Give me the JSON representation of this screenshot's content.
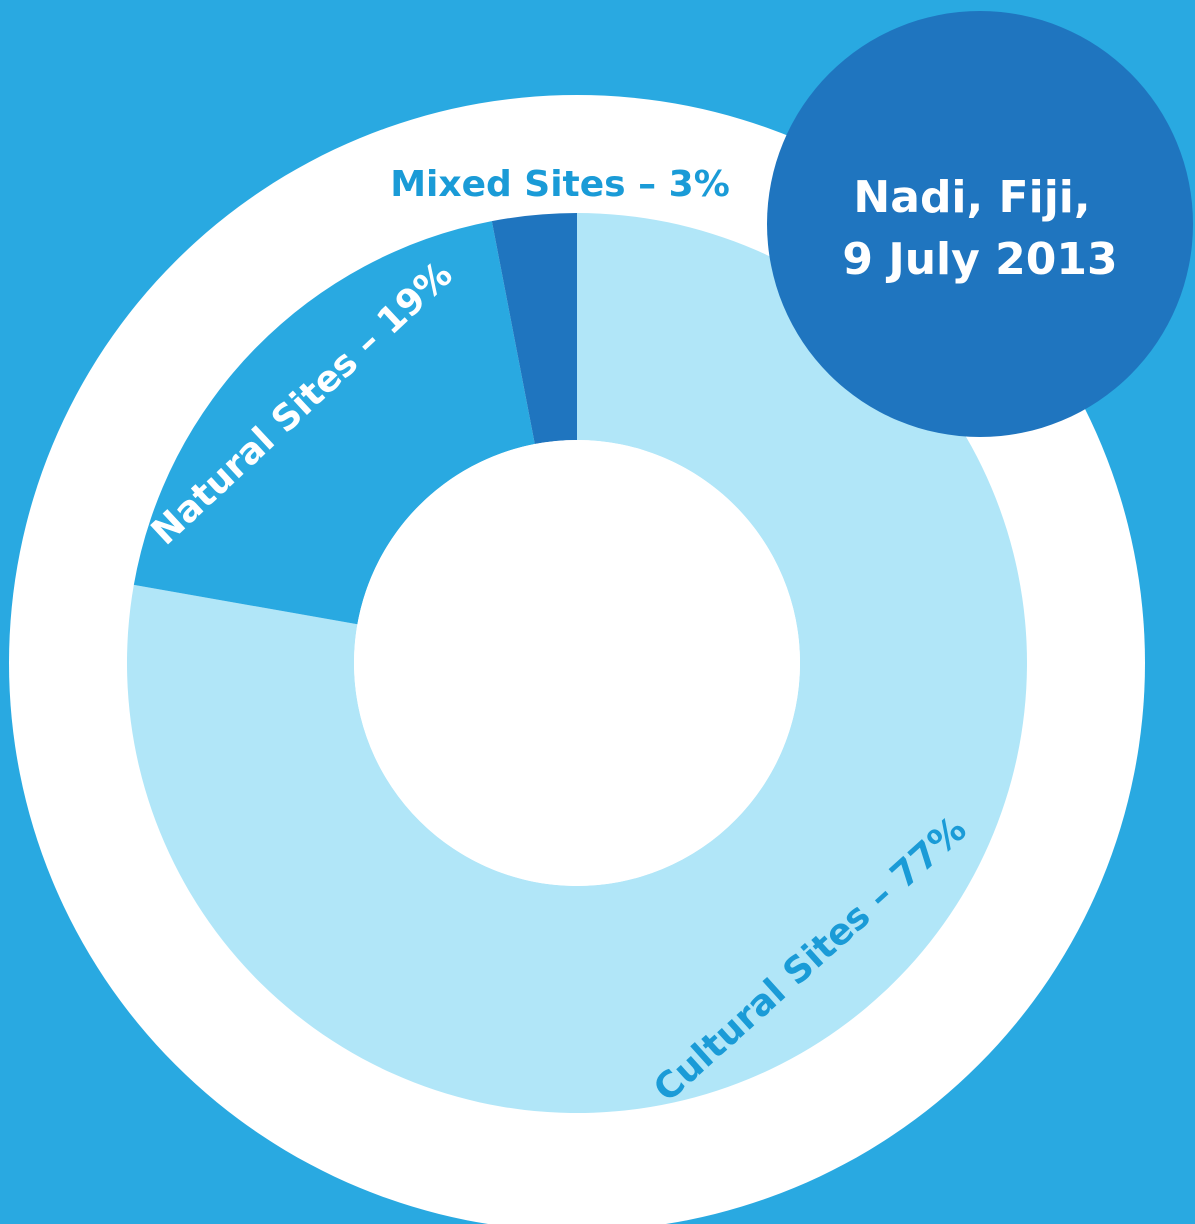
{
  "colors": {
    "background": "#29a9e1",
    "outer_ring": "#ffffff",
    "inner_hole": "#ffffff",
    "badge": "#1f75bf",
    "badge_text": "#ffffff"
  },
  "badge": {
    "line1": "Nadi, Fiji,",
    "line2": "9 July 2013"
  },
  "chart_data": {
    "type": "pie",
    "title": "",
    "start": "top",
    "direction": "clockwise",
    "slices": [
      {
        "label": "Cultural Sites – 77%",
        "value": 77,
        "color": "#b1e6f8",
        "label_color": "#1a9bd7"
      },
      {
        "label": "Natural Sites – 19%",
        "value": 19,
        "color": "#29a9e1",
        "label_color": "#ffffff"
      },
      {
        "label": "Mixed Sites – 3%",
        "value": 3,
        "color": "#1f75bf",
        "label_color": "#1a9bd7"
      }
    ]
  }
}
